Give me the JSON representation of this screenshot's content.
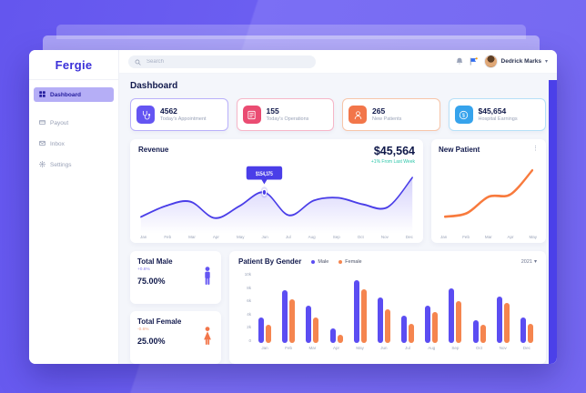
{
  "sidebar": {
    "logo": "Fergie",
    "items": [
      {
        "label": "Dashboard",
        "active": true
      },
      {
        "label": "Payout",
        "active": false
      },
      {
        "label": "Inbox",
        "active": false
      },
      {
        "label": "Settings",
        "active": false
      }
    ]
  },
  "topbar": {
    "search_placeholder": "Search",
    "user_name": "Dedrick Marks"
  },
  "page_title": "Dashboard",
  "stat_cards": [
    {
      "value": "4562",
      "label": "Today's Appointment",
      "accent": "#6455f2",
      "border": "#b9b0fa",
      "icon": "stethoscope-icon"
    },
    {
      "value": "155",
      "label": "Today's Operations",
      "accent": "#ea4c72",
      "border": "#f6b6c8",
      "icon": "clipboard-icon"
    },
    {
      "value": "265",
      "label": "New Patients",
      "accent": "#f2764a",
      "border": "#f7c5a9",
      "icon": "person-icon"
    },
    {
      "value": "$45,654",
      "label": "Hospital Earnings",
      "accent": "#36a3ec",
      "border": "#b6e0f8",
      "icon": "dollar-circle-icon"
    }
  ],
  "revenue": {
    "title": "Revenue",
    "total": "$45,564",
    "delta": "+1% From Last Week",
    "delta_color": "#2cc6a9",
    "line_color": "#4a3ee8",
    "tooltip": "$154,375"
  },
  "new_patient": {
    "title": "New Patient",
    "line_color": "#f87a3d"
  },
  "totals": [
    {
      "title": "Total Male",
      "delta": "+0.6%",
      "delta_color": "#8b80f5",
      "value": "75.00%",
      "icon_color": "#6455f2"
    },
    {
      "title": "Total Female",
      "delta": "-0.6%",
      "delta_color": "#f5a47c",
      "value": "25.00%",
      "icon_color": "#f2764a"
    }
  ],
  "gender": {
    "title": "Patient By Gender",
    "year": "2021",
    "legend": [
      {
        "label": "Male",
        "color": "#5b4df2"
      },
      {
        "label": "Female",
        "color": "#f5854f"
      }
    ]
  },
  "icons": {
    "search": "magnifier",
    "notifications": "bell",
    "flag": "flag",
    "user_menu": "chevron-down",
    "new_patient_menu": "vertical-ellipsis"
  },
  "chart_data": [
    {
      "type": "line",
      "title": "Revenue",
      "x": [
        "Jan",
        "Feb",
        "Mar",
        "Apr",
        "May",
        "Jun",
        "Jul",
        "Aug",
        "Sep",
        "Oct",
        "Nov",
        "Dec"
      ],
      "values": [
        23,
        43,
        51,
        21,
        43,
        68,
        26,
        53,
        58,
        46,
        41,
        95
      ],
      "highlight": {
        "index": 5,
        "x": "Jun",
        "label": "$154,375"
      },
      "ylim": [
        0,
        100
      ],
      "grid": false,
      "legend_position": "none"
    },
    {
      "type": "line",
      "title": "New Patient",
      "x": [
        "Jan",
        "Feb",
        "Mar",
        "Apr",
        "May"
      ],
      "values": [
        16,
        22,
        50,
        54,
        95
      ],
      "ylim": [
        0,
        100
      ],
      "grid": false,
      "legend_position": "none"
    },
    {
      "type": "bar",
      "title": "Patient By Gender",
      "categories": [
        "Jan",
        "Feb",
        "Mar",
        "Apr",
        "May",
        "Jun",
        "Jul",
        "Aug",
        "Sep",
        "Oct",
        "Nov",
        "Dec"
      ],
      "series": [
        {
          "name": "Male",
          "color": "#5b4df2",
          "values": [
            3600,
            7400,
            5200,
            2100,
            8900,
            6400,
            3800,
            5200,
            7700,
            3200,
            6600,
            3600
          ]
        },
        {
          "name": "Female",
          "color": "#f5854f",
          "values": [
            2600,
            6200,
            3600,
            1100,
            7500,
            4800,
            2700,
            4400,
            5900,
            2500,
            5600,
            2700
          ]
        }
      ],
      "yticks": [
        "0",
        "2k",
        "4k",
        "6k",
        "8k",
        "10k"
      ],
      "ylim": [
        0,
        10000
      ],
      "grid": false,
      "legend_position": "top"
    }
  ]
}
